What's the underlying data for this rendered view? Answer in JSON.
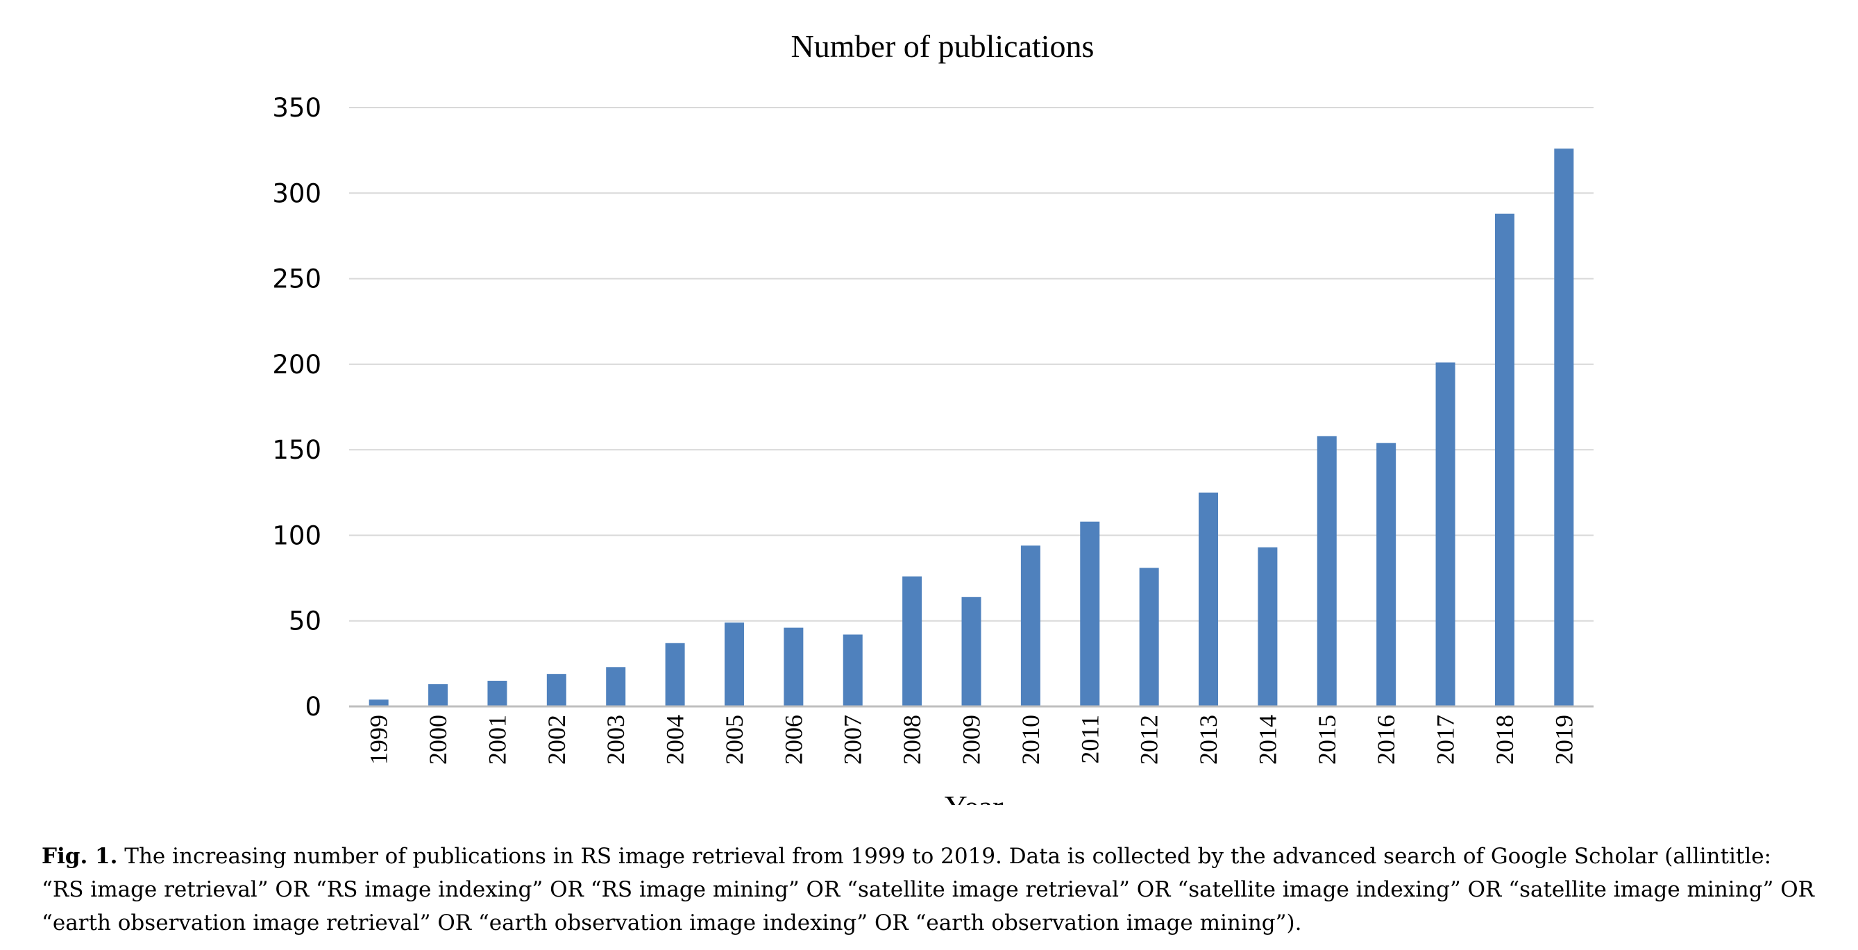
{
  "chart_data": {
    "type": "bar",
    "title": "Number of publications",
    "xlabel": "Year",
    "ylabel": "",
    "categories": [
      "1999",
      "2000",
      "2001",
      "2002",
      "2003",
      "2004",
      "2005",
      "2006",
      "2007",
      "2008",
      "2009",
      "2010",
      "2011",
      "2012",
      "2013",
      "2014",
      "2015",
      "2016",
      "2017",
      "2018",
      "2019"
    ],
    "values": [
      4,
      13,
      15,
      19,
      23,
      37,
      49,
      46,
      42,
      76,
      64,
      94,
      108,
      81,
      125,
      93,
      158,
      154,
      201,
      288,
      326
    ],
    "ylim": [
      0,
      350
    ],
    "yticks": [
      "0",
      "50",
      "100",
      "150",
      "200",
      "250",
      "300",
      "350"
    ],
    "grid": true,
    "legend": "none",
    "bar_color": "#4f81bd",
    "grid_color": "#d9d9d9",
    "axis_color": "#bfbfbf"
  },
  "caption": {
    "label": "Fig. 1.",
    "text": "The increasing number of publications in RS image retrieval from 1999 to 2019. Data is collected by the advanced search of Google Scholar (allintitle: “RS image retrieval” OR “RS image indexing” OR “RS image mining” OR “satellite image retrieval” OR “satellite image indexing” OR “satellite image mining” OR “earth observation image retrieval” OR “earth observation image indexing” OR “earth observation image mining”)."
  }
}
